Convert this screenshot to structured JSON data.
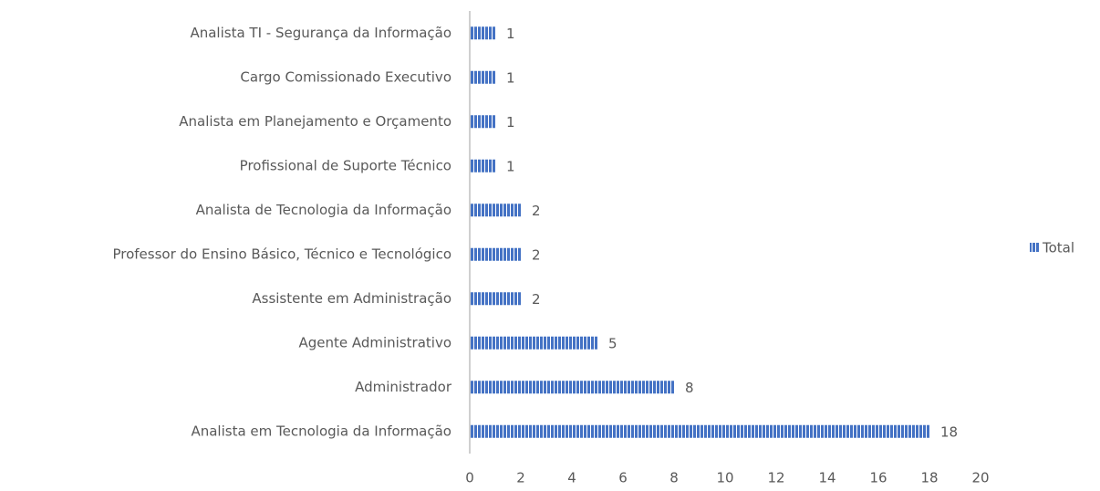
{
  "chart_data": {
    "type": "bar",
    "orientation": "horizontal",
    "categories": [
      "Analista TI - Segurança da Informação",
      "Cargo Comissionado Executivo",
      "Analista em Planejamento e Orçamento",
      "Profissional de Suporte Técnico",
      "Analista de Tecnologia da Informação",
      "Professor do Ensino Básico, Técnico e Tecnológico",
      "Assistente em Administração",
      "Agente Administrativo",
      "Administrador",
      "Analista em Tecnologia da Informação"
    ],
    "series": [
      {
        "name": "Total",
        "color": "#4472c4",
        "values": [
          1,
          1,
          1,
          1,
          2,
          2,
          2,
          5,
          8,
          18
        ]
      }
    ],
    "xlim": [
      0,
      20
    ],
    "xticks": [
      0,
      2,
      4,
      6,
      8,
      10,
      12,
      14,
      16,
      18,
      20
    ],
    "grid": false,
    "legend": "right"
  }
}
